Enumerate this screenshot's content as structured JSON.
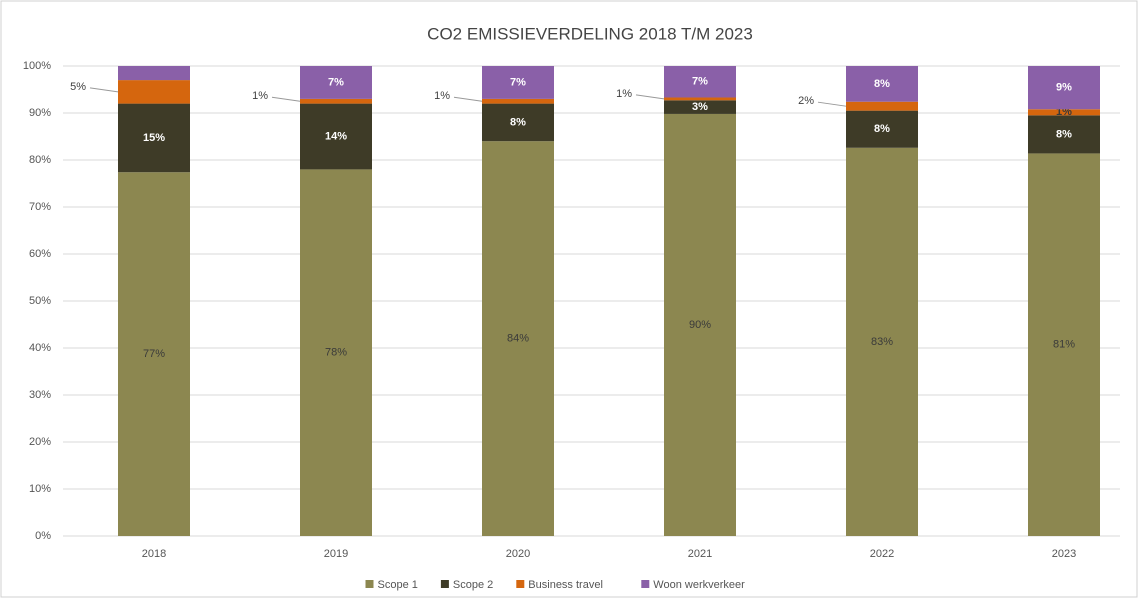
{
  "chart_data": {
    "type": "stacked_bar",
    "title": "CO2 EMISSIEVERDELING 2018 T/M 2023",
    "categories": [
      "2018",
      "2019",
      "2020",
      "2021",
      "2022",
      "2023"
    ],
    "series": [
      {
        "name": "Scope 1",
        "color": "#8c8750",
        "values": [
          77.4,
          78,
          84,
          89.8,
          82.6,
          81.4
        ],
        "value_labels": [
          "77%",
          "78%",
          "84%",
          "90%",
          "83%",
          "81%"
        ]
      },
      {
        "name": "Scope 2",
        "color": "#3e3b27",
        "values": [
          14.6,
          14,
          8,
          2.9,
          7.9,
          8.1
        ],
        "value_labels": [
          "15%",
          "14%",
          "8%",
          "3%",
          "8%",
          "8%"
        ]
      },
      {
        "name": "Business travel",
        "color": "#d5660e",
        "values": [
          5,
          1,
          1,
          0.6,
          1.9,
          1.3
        ],
        "value_labels": [
          "5%",
          "1%",
          "1%",
          "1%",
          "2%",
          "1%"
        ]
      },
      {
        "name": "Woon werkverkeer",
        "color": "#8a60a8",
        "values": [
          3,
          7,
          7,
          6.7,
          7.6,
          9.2
        ],
        "value_labels": [
          null,
          "7%",
          "7%",
          "7%",
          "8%",
          "9%"
        ]
      }
    ],
    "ylim": [
      0,
      100
    ],
    "yticks": [
      {
        "value": 0,
        "label": "0%"
      },
      {
        "value": 10,
        "label": "10%"
      },
      {
        "value": 20,
        "label": "20%"
      },
      {
        "value": 30,
        "label": "30%"
      },
      {
        "value": 40,
        "label": "40%"
      },
      {
        "value": 50,
        "label": "50%"
      },
      {
        "value": 60,
        "label": "60%"
      },
      {
        "value": 70,
        "label": "70%"
      },
      {
        "value": 80,
        "label": "80%"
      },
      {
        "value": 90,
        "label": "90%"
      },
      {
        "value": 100,
        "label": "100%"
      }
    ],
    "grid": true,
    "legend": "bottom"
  }
}
